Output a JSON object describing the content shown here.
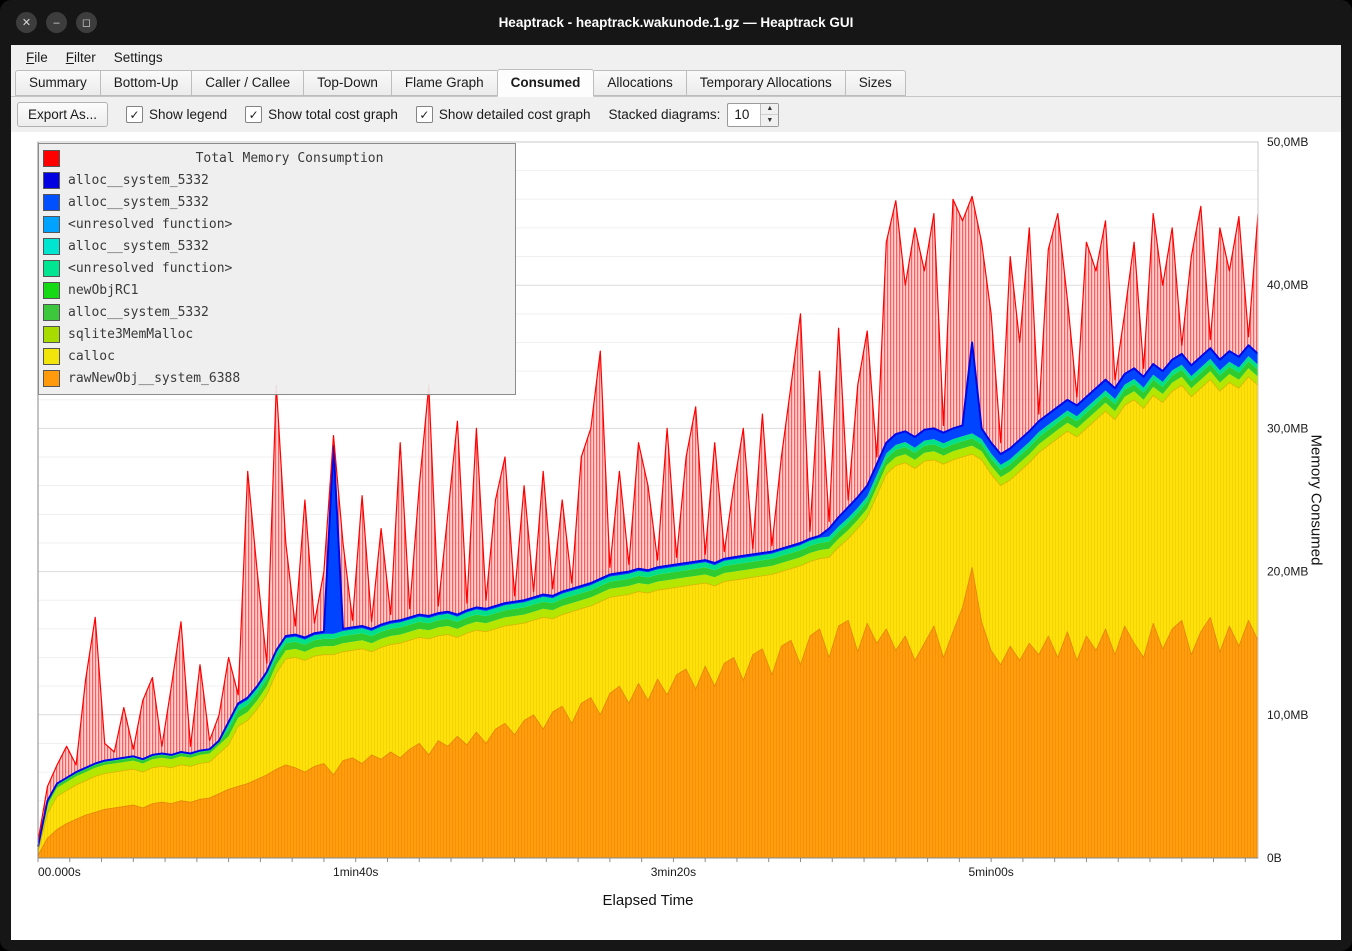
{
  "window": {
    "title": "Heaptrack - heaptrack.wakunode.1.gz — Heaptrack GUI",
    "controls": [
      {
        "name": "close",
        "glyph": "✕"
      },
      {
        "name": "minimize",
        "glyph": "–"
      },
      {
        "name": "maximize",
        "glyph": "◻"
      }
    ]
  },
  "menubar": {
    "items": [
      {
        "label": "File",
        "mnemonic": "F"
      },
      {
        "label": "Filter",
        "mnemonic": "F"
      },
      {
        "label": "Settings",
        "mnemonic": "g"
      }
    ]
  },
  "tabs": {
    "items": [
      "Summary",
      "Bottom-Up",
      "Caller / Callee",
      "Top-Down",
      "Flame Graph",
      "Consumed",
      "Allocations",
      "Temporary Allocations",
      "Sizes"
    ],
    "active": "Consumed"
  },
  "toolbar": {
    "export_label": "Export As...",
    "check_glyph": "✓",
    "checkboxes": [
      {
        "label": "Show legend",
        "checked": true
      },
      {
        "label": "Show total cost graph",
        "checked": true
      },
      {
        "label": "Show detailed cost graph",
        "checked": true
      }
    ],
    "stacked_label": "Stacked diagrams:",
    "stacked_value": "10"
  },
  "legend": {
    "title": "Total Memory Consumption",
    "title_color": "#ff0000",
    "entries": [
      {
        "label": "alloc__system_5332",
        "color": "#0000e1"
      },
      {
        "label": "alloc__system_5332",
        "color": "#0050ff"
      },
      {
        "label": "<unresolved function>",
        "color": "#00a2ff"
      },
      {
        "label": "alloc__system_5332",
        "color": "#00e5d0"
      },
      {
        "label": "<unresolved function>",
        "color": "#00e592"
      },
      {
        "label": "newObjRC1",
        "color": "#16d916"
      },
      {
        "label": "alloc__system_5332",
        "color": "#3cc73c"
      },
      {
        "label": "sqlite3MemMalloc",
        "color": "#a8dc00"
      },
      {
        "label": "calloc",
        "color": "#f2e50c"
      },
      {
        "label": "rawNewObj__system_6388",
        "color": "#ff9a0d"
      }
    ]
  },
  "axes": {
    "y_title": "Memory Consumed",
    "x_title": "Elapsed Time",
    "y_max": 50,
    "t_max": 384,
    "minor_grid_step": 2,
    "major_grid_step": 10,
    "x_minor_tick_step": 10,
    "y_ticks": [
      {
        "label": "0B",
        "value": 0
      },
      {
        "label": "10,0MB",
        "value": 10
      },
      {
        "label": "20,0MB",
        "value": 20
      },
      {
        "label": "30,0MB",
        "value": 30
      },
      {
        "label": "40,0MB",
        "value": 40
      },
      {
        "label": "50,0MB",
        "value": 50
      }
    ],
    "x_ticks": [
      {
        "label": "00.000s",
        "t": 0
      },
      {
        "label": "1min40s",
        "t": 100
      },
      {
        "label": "3min20s",
        "t": 200
      },
      {
        "label": "5min00s",
        "t": 300
      }
    ]
  },
  "chart_data": {
    "type": "area",
    "stacked": true,
    "unit": "MB",
    "title": "Total Memory Consumption",
    "xlabel": "Elapsed Time",
    "ylabel": "Memory Consumed",
    "ylim": [
      0,
      50
    ],
    "t_step": 3,
    "series": {
      "orange": [
        0.2,
        1.4,
        2.0,
        2.4,
        2.7,
        3.0,
        3.2,
        3.4,
        3.5,
        3.6,
        3.7,
        3.5,
        3.8,
        3.9,
        3.8,
        4.0,
        3.9,
        4.1,
        4.2,
        4.5,
        4.8,
        5.0,
        5.2,
        5.5,
        5.8,
        6.2,
        6.5,
        6.3,
        6.0,
        6.4,
        6.6,
        5.8,
        6.8,
        7.0,
        6.6,
        7.2,
        6.9,
        7.4,
        7.0,
        7.6,
        8.0,
        7.2,
        8.2,
        7.8,
        8.5,
        7.9,
        8.8,
        8.0,
        9.0,
        9.4,
        8.6,
        9.6,
        10.0,
        9.0,
        10.2,
        10.6,
        9.4,
        10.8,
        11.2,
        10.0,
        11.5,
        12.0,
        10.8,
        12.2,
        11.0,
        12.5,
        11.4,
        12.8,
        13.2,
        11.8,
        13.4,
        12.0,
        13.6,
        14.0,
        12.4,
        14.2,
        14.6,
        12.8,
        14.8,
        15.2,
        13.5,
        15.5,
        16.0,
        14.0,
        16.2,
        16.6,
        14.4,
        16.4,
        15.0,
        16.0,
        14.5,
        15.5,
        13.8,
        15.0,
        16.2,
        14.0,
        15.8,
        17.5,
        20.3,
        16.5,
        14.5,
        13.5,
        14.8,
        13.8,
        15.0,
        14.2,
        15.5,
        14.0,
        15.8,
        13.8,
        15.5,
        14.5,
        16.0,
        14.2,
        16.2,
        15.0,
        14.0,
        16.4,
        14.6,
        16.0,
        16.6,
        14.2,
        15.8,
        16.8,
        14.4,
        16.2,
        14.8,
        16.6,
        15.2
      ],
      "yellow": [
        0.4,
        3.1,
        4.3,
        4.7,
        5.1,
        5.4,
        5.7,
        5.9,
        6.0,
        6.1,
        6.2,
        6.0,
        6.3,
        6.4,
        6.3,
        6.5,
        6.4,
        6.6,
        6.7,
        7.3,
        7.9,
        9.2,
        9.6,
        10.4,
        11.4,
        12.9,
        13.9,
        14.0,
        13.8,
        14.1,
        14.2,
        14.2,
        14.4,
        14.5,
        14.6,
        14.4,
        14.7,
        14.9,
        15.0,
        15.2,
        15.4,
        15.3,
        15.5,
        15.6,
        15.4,
        15.7,
        15.9,
        15.8,
        16.0,
        16.2,
        16.3,
        16.4,
        16.6,
        16.8,
        16.7,
        17.0,
        17.2,
        17.4,
        17.6,
        17.9,
        18.2,
        18.3,
        18.4,
        18.6,
        18.5,
        18.7,
        18.8,
        18.9,
        19.0,
        19.1,
        19.2,
        19.0,
        19.3,
        19.4,
        19.5,
        19.6,
        19.7,
        19.8,
        20.0,
        20.2,
        20.4,
        20.7,
        20.9,
        21.0,
        21.7,
        22.3,
        23.0,
        23.8,
        25.3,
        26.8,
        27.4,
        27.6,
        27.2,
        27.7,
        27.8,
        27.5,
        27.8,
        28.0,
        28.2,
        27.8,
        26.8,
        26.0,
        26.4,
        27.0,
        27.6,
        28.3,
        28.8,
        29.3,
        29.8,
        29.4,
        30.0,
        30.6,
        31.2,
        30.6,
        31.6,
        32.0,
        31.4,
        32.3,
        31.8,
        32.6,
        33.0,
        32.2,
        32.8,
        33.4,
        32.6,
        33.2,
        32.8,
        33.6,
        33.0
      ],
      "blue": [
        0.8,
        4.0,
        5.2,
        5.6,
        6.0,
        6.3,
        6.6,
        6.8,
        6.9,
        7.0,
        7.1,
        6.9,
        7.2,
        7.3,
        7.2,
        7.4,
        7.3,
        7.5,
        7.6,
        8.2,
        9.5,
        10.8,
        11.2,
        12.0,
        13.0,
        14.5,
        15.5,
        15.6,
        15.4,
        15.7,
        15.8,
        28.8,
        16.0,
        16.1,
        16.2,
        16.0,
        16.3,
        16.5,
        16.6,
        16.8,
        17.0,
        16.9,
        17.1,
        17.2,
        17.0,
        17.3,
        17.5,
        17.4,
        17.6,
        17.8,
        17.9,
        18.0,
        18.2,
        18.4,
        18.3,
        18.6,
        18.8,
        19.0,
        19.2,
        19.5,
        19.8,
        19.9,
        20.0,
        20.2,
        20.1,
        20.3,
        20.4,
        20.5,
        20.6,
        20.7,
        20.8,
        20.6,
        20.9,
        21.0,
        21.1,
        21.2,
        21.3,
        21.4,
        21.6,
        21.8,
        22.0,
        22.3,
        22.5,
        23.0,
        23.8,
        24.5,
        25.2,
        26.0,
        27.5,
        29.0,
        29.6,
        29.8,
        29.4,
        29.9,
        30.0,
        29.7,
        30.0,
        30.2,
        36.0,
        30.0,
        29.0,
        28.2,
        28.6,
        29.2,
        29.8,
        30.5,
        31.0,
        31.5,
        32.0,
        31.6,
        32.2,
        32.8,
        33.4,
        32.8,
        33.8,
        34.2,
        33.6,
        34.5,
        34.0,
        34.8,
        35.2,
        34.4,
        35.0,
        35.6,
        34.8,
        35.4,
        35.0,
        35.8,
        35.2
      ],
      "total": [
        1.2,
        5.0,
        6.5,
        7.8,
        6.5,
        12.5,
        16.8,
        8.0,
        7.4,
        10.5,
        7.6,
        11.0,
        12.6,
        7.8,
        12.0,
        16.5,
        7.8,
        13.5,
        8.2,
        10.0,
        14.0,
        11.4,
        27.0,
        20.0,
        13.6,
        33.0,
        22.0,
        16.2,
        25.0,
        16.4,
        20.0,
        29.5,
        22.0,
        16.6,
        25.3,
        16.5,
        23.0,
        17.0,
        29.0,
        17.4,
        26.0,
        33.0,
        17.6,
        24.0,
        30.5,
        17.8,
        30.0,
        18.0,
        25.0,
        28.0,
        18.3,
        26.0,
        18.6,
        27.0,
        18.8,
        25.0,
        19.2,
        28.0,
        30.0,
        35.4,
        20.3,
        27.0,
        20.5,
        29.0,
        26.0,
        20.8,
        30.0,
        21.0,
        28.0,
        31.5,
        21.2,
        29.0,
        21.4,
        26.0,
        30.0,
        21.6,
        31.0,
        21.8,
        28.0,
        33.0,
        38.0,
        22.8,
        34.0,
        23.5,
        37.0,
        25.0,
        33.0,
        36.8,
        28.0,
        43.0,
        45.9,
        40.0,
        44.0,
        41.0,
        45.0,
        30.2,
        46.0,
        44.5,
        46.2,
        43.0,
        38.0,
        29.0,
        42.0,
        36.0,
        44.0,
        31.0,
        42.5,
        45.0,
        39.0,
        32.2,
        43.0,
        41.0,
        44.5,
        33.4,
        38.0,
        43.0,
        34.2,
        45.0,
        40.0,
        44.0,
        35.8,
        42.0,
        45.5,
        36.2,
        44.0,
        41.0,
        44.8,
        36.4,
        45.0
      ]
    },
    "thin_bands": [
      {
        "name": "sqlite3MemMalloc",
        "color": "#b4e600",
        "thickness": 0.6
      },
      {
        "name": "newObjRC1",
        "color": "#2ecc2e",
        "thickness": 0.5
      },
      {
        "name": "unresolved-function",
        "color": "#00e088",
        "thickness": 0.35
      }
    ],
    "layer_colors": {
      "orange": "#ff9d0c",
      "yellow": "#ffe10a",
      "blue_fill": "#0044ff",
      "blue_line": "#0008e8",
      "red_line": "#ff0000"
    }
  }
}
